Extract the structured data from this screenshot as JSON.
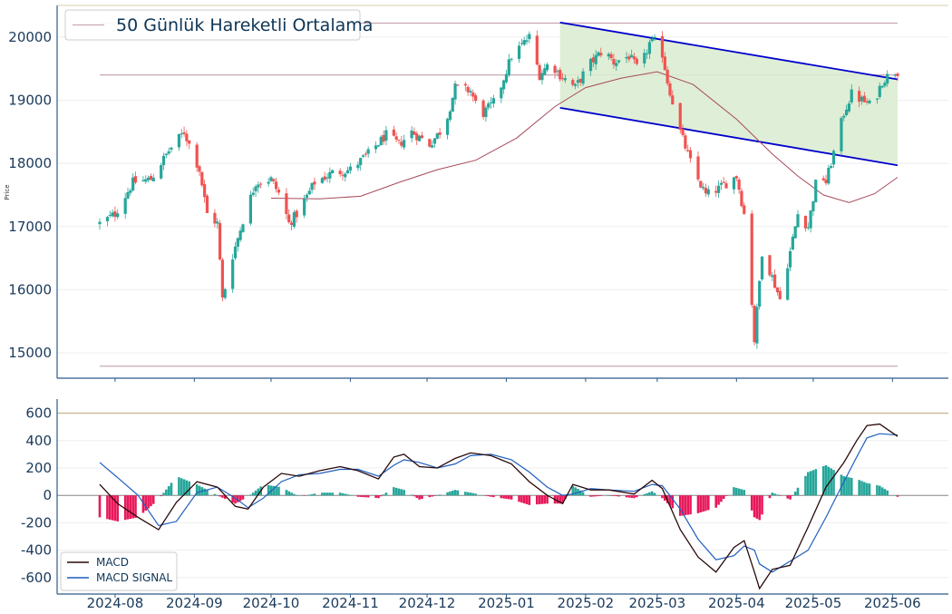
{
  "chart_data": [
    {
      "type": "candlestick",
      "ylabel": "Price",
      "ylim": [
        14600,
        20500
      ],
      "yticks": [
        15000,
        16000,
        17000,
        18000,
        19000,
        20000
      ],
      "xticks": [
        "2024-08",
        "2024-09",
        "2024-10",
        "2024-11",
        "2024-12",
        "2025-01",
        "2025-02",
        "2025-03",
        "2025-04",
        "2025-05",
        "2025-06"
      ],
      "x_start": "2024-07-26",
      "x_end": "2025-06-03",
      "legend": [
        "50 Günlük Hareketli Ortalama"
      ],
      "legend_position": "top-left",
      "grid": "horizontal",
      "colors": {
        "up": "#26a69a",
        "down": "#ef5350",
        "ma": "#a84a5a",
        "channel": "#0000cc",
        "channel_fill": "#dcecd2",
        "hline": "#c8a8b4"
      },
      "horizontal_lines": [
        20220,
        19400,
        14790
      ],
      "channel": {
        "x_start": "2025-01-22",
        "x_end": "2025-06-03",
        "upper": [
          20230,
          19330
        ],
        "lower": [
          18880,
          17970
        ]
      },
      "moving_average_50": [
        [
          "2024-10-01",
          17450
        ],
        [
          "2024-10-20",
          17440
        ],
        [
          "2024-11-05",
          17480
        ],
        [
          "2024-11-20",
          17700
        ],
        [
          "2024-12-05",
          17900
        ],
        [
          "2024-12-20",
          18050
        ],
        [
          "2025-01-05",
          18400
        ],
        [
          "2025-01-20",
          18900
        ],
        [
          "2025-02-01",
          19200
        ],
        [
          "2025-02-15",
          19350
        ],
        [
          "2025-03-01",
          19450
        ],
        [
          "2025-03-15",
          19250
        ],
        [
          "2025-04-01",
          18700
        ],
        [
          "2025-04-15",
          18150
        ],
        [
          "2025-04-25",
          17800
        ],
        [
          "2025-05-05",
          17500
        ],
        [
          "2025-05-15",
          17380
        ],
        [
          "2025-05-25",
          17520
        ],
        [
          "2025-06-03",
          17780
        ]
      ],
      "close_points": [
        [
          "2024-07-26",
          17050
        ],
        [
          "2024-08-01",
          17200
        ],
        [
          "2024-08-08",
          17700
        ],
        [
          "2024-08-15",
          17750
        ],
        [
          "2024-08-22",
          18200
        ],
        [
          "2024-08-28",
          18500
        ],
        [
          "2024-09-03",
          17900
        ],
        [
          "2024-09-06",
          17200
        ],
        [
          "2024-09-10",
          17050
        ],
        [
          "2024-09-12",
          15850
        ],
        [
          "2024-09-15",
          16400
        ],
        [
          "2024-09-20",
          17100
        ],
        [
          "2024-09-25",
          17700
        ],
        [
          "2024-10-01",
          17750
        ],
        [
          "2024-10-05",
          17450
        ],
        [
          "2024-10-08",
          17050
        ],
        [
          "2024-10-12",
          17250
        ],
        [
          "2024-10-18",
          17700
        ],
        [
          "2024-10-25",
          17850
        ],
        [
          "2024-11-01",
          17900
        ],
        [
          "2024-11-08",
          18150
        ],
        [
          "2024-11-15",
          18450
        ],
        [
          "2024-11-20",
          18300
        ],
        [
          "2024-11-25",
          18500
        ],
        [
          "2024-12-02",
          18300
        ],
        [
          "2024-12-08",
          18600
        ],
        [
          "2024-12-12",
          19200
        ],
        [
          "2024-12-18",
          19150
        ],
        [
          "2024-12-22",
          18750
        ],
        [
          "2024-12-28",
          19000
        ],
        [
          "2025-01-03",
          19700
        ],
        [
          "2025-01-10",
          20000
        ],
        [
          "2025-01-14",
          19400
        ],
        [
          "2025-01-18",
          19600
        ],
        [
          "2025-01-22",
          19400
        ],
        [
          "2025-01-28",
          19200
        ],
        [
          "2025-02-02",
          19550
        ],
        [
          "2025-02-08",
          19800
        ],
        [
          "2025-02-12",
          19600
        ],
        [
          "2025-02-18",
          19700
        ],
        [
          "2025-02-22",
          19450
        ],
        [
          "2025-02-26",
          19900
        ],
        [
          "2025-03-02",
          19950
        ],
        [
          "2025-03-05",
          19300
        ],
        [
          "2025-03-10",
          18500
        ],
        [
          "2025-03-15",
          17900
        ],
        [
          "2025-03-20",
          17500
        ],
        [
          "2025-03-25",
          17600
        ],
        [
          "2025-04-01",
          17800
        ],
        [
          "2025-04-05",
          17000
        ],
        [
          "2025-04-08",
          15200
        ],
        [
          "2025-04-11",
          16600
        ],
        [
          "2025-04-15",
          16200
        ],
        [
          "2025-04-18",
          15850
        ],
        [
          "2025-04-22",
          16600
        ],
        [
          "2025-04-25",
          17200
        ],
        [
          "2025-04-29",
          17000
        ],
        [
          "2025-05-03",
          17900
        ],
        [
          "2025-05-06",
          17700
        ],
        [
          "2025-05-13",
          18800
        ],
        [
          "2025-05-16",
          19100
        ],
        [
          "2025-05-20",
          19000
        ],
        [
          "2025-05-24",
          18900
        ],
        [
          "2025-05-28",
          19300
        ],
        [
          "2025-06-01",
          19450
        ],
        [
          "2025-06-03",
          19450
        ]
      ]
    },
    {
      "type": "line+bar",
      "ylim": [
        -720,
        650
      ],
      "yticks": [
        -600,
        -400,
        -200,
        0,
        200,
        400,
        600
      ],
      "legend": [
        "MACD",
        "MACD SIGNAL"
      ],
      "legend_position": "bottom-left",
      "grid": "horizontal",
      "colors": {
        "macd": "#2a0a0a",
        "signal": "#1f5fbf",
        "hist_pos": "#26a69a",
        "hist_neg": "#e8185a",
        "top_line": "#c9b896"
      },
      "top_reference_line": 600,
      "macd": [
        [
          "2024-07-26",
          80
        ],
        [
          "2024-08-02",
          -60
        ],
        [
          "2024-08-10",
          -160
        ],
        [
          "2024-08-18",
          -250
        ],
        [
          "2024-08-25",
          -50
        ],
        [
          "2024-09-02",
          100
        ],
        [
          "2024-09-10",
          60
        ],
        [
          "2024-09-17",
          -80
        ],
        [
          "2024-09-22",
          -100
        ],
        [
          "2024-09-28",
          60
        ],
        [
          "2024-10-05",
          160
        ],
        [
          "2024-10-12",
          140
        ],
        [
          "2024-10-20",
          180
        ],
        [
          "2024-10-28",
          210
        ],
        [
          "2024-11-04",
          180
        ],
        [
          "2024-11-12",
          120
        ],
        [
          "2024-11-18",
          280
        ],
        [
          "2024-11-22",
          300
        ],
        [
          "2024-11-28",
          210
        ],
        [
          "2024-12-05",
          200
        ],
        [
          "2024-12-12",
          270
        ],
        [
          "2024-12-18",
          310
        ],
        [
          "2024-12-26",
          290
        ],
        [
          "2025-01-03",
          230
        ],
        [
          "2025-01-10",
          100
        ],
        [
          "2025-01-17",
          0
        ],
        [
          "2025-01-23",
          -60
        ],
        [
          "2025-01-27",
          80
        ],
        [
          "2025-02-03",
          40
        ],
        [
          "2025-02-10",
          40
        ],
        [
          "2025-02-20",
          10
        ],
        [
          "2025-02-27",
          110
        ],
        [
          "2025-03-03",
          50
        ],
        [
          "2025-03-10",
          -250
        ],
        [
          "2025-03-17",
          -450
        ],
        [
          "2025-03-24",
          -560
        ],
        [
          "2025-03-31",
          -380
        ],
        [
          "2025-04-04",
          -330
        ],
        [
          "2025-04-08",
          -560
        ],
        [
          "2025-04-10",
          -680
        ],
        [
          "2025-04-15",
          -540
        ],
        [
          "2025-04-22",
          -510
        ],
        [
          "2025-04-29",
          -230
        ],
        [
          "2025-05-06",
          60
        ],
        [
          "2025-05-13",
          240
        ],
        [
          "2025-05-18",
          400
        ],
        [
          "2025-05-22",
          510
        ],
        [
          "2025-05-27",
          520
        ],
        [
          "2025-06-03",
          430
        ]
      ],
      "macd_signal": [
        [
          "2024-07-26",
          240
        ],
        [
          "2024-08-02",
          130
        ],
        [
          "2024-08-10",
          0
        ],
        [
          "2024-08-18",
          -220
        ],
        [
          "2024-08-25",
          -190
        ],
        [
          "2024-09-02",
          20
        ],
        [
          "2024-09-10",
          60
        ],
        [
          "2024-09-17",
          -20
        ],
        [
          "2024-09-22",
          -90
        ],
        [
          "2024-09-28",
          -20
        ],
        [
          "2024-10-05",
          100
        ],
        [
          "2024-10-12",
          150
        ],
        [
          "2024-10-20",
          160
        ],
        [
          "2024-10-28",
          190
        ],
        [
          "2024-11-04",
          190
        ],
        [
          "2024-11-12",
          140
        ],
        [
          "2024-11-18",
          220
        ],
        [
          "2024-11-22",
          260
        ],
        [
          "2024-11-28",
          240
        ],
        [
          "2024-12-05",
          200
        ],
        [
          "2024-12-12",
          230
        ],
        [
          "2024-12-18",
          290
        ],
        [
          "2024-12-26",
          300
        ],
        [
          "2025-01-03",
          260
        ],
        [
          "2025-01-10",
          170
        ],
        [
          "2025-01-17",
          60
        ],
        [
          "2025-01-23",
          0
        ],
        [
          "2025-01-27",
          10
        ],
        [
          "2025-02-03",
          50
        ],
        [
          "2025-02-10",
          40
        ],
        [
          "2025-02-20",
          30
        ],
        [
          "2025-02-27",
          80
        ],
        [
          "2025-03-03",
          70
        ],
        [
          "2025-03-10",
          -100
        ],
        [
          "2025-03-17",
          -320
        ],
        [
          "2025-03-24",
          -470
        ],
        [
          "2025-03-31",
          -440
        ],
        [
          "2025-04-04",
          -370
        ],
        [
          "2025-04-08",
          -400
        ],
        [
          "2025-04-10",
          -500
        ],
        [
          "2025-04-15",
          -560
        ],
        [
          "2025-04-22",
          -480
        ],
        [
          "2025-04-29",
          -400
        ],
        [
          "2025-05-06",
          -160
        ],
        [
          "2025-05-13",
          100
        ],
        [
          "2025-05-18",
          280
        ],
        [
          "2025-05-22",
          420
        ],
        [
          "2025-05-27",
          450
        ],
        [
          "2025-06-03",
          440
        ]
      ]
    }
  ]
}
